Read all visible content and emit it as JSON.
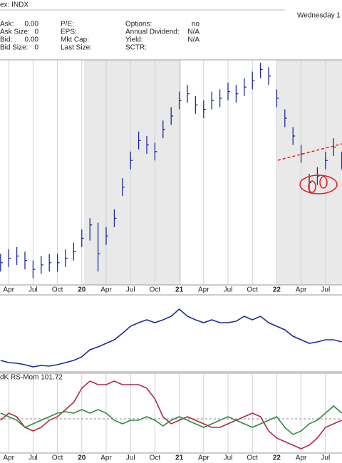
{
  "header": {
    "exchange": "ex: INDX",
    "date": "Wednesday 1",
    "fields": [
      [
        [
          "Ask:",
          "0.00"
        ],
        [
          "P/E:",
          ""
        ],
        [
          "Options:",
          "no"
        ]
      ],
      [
        [
          "Ask Size:",
          "0"
        ],
        [
          "EPS:",
          ""
        ],
        [
          "Annual Dividend:",
          "N/A"
        ]
      ],
      [
        [
          "Bid:",
          "0.00"
        ],
        [
          "Mkt Cap:",
          ""
        ],
        [
          "Yield:",
          "N/A"
        ]
      ],
      [
        [
          "Bid Size:",
          "0"
        ],
        [
          "Last Size:",
          ""
        ],
        [
          "SCTR:",
          ""
        ]
      ]
    ]
  },
  "chart_data": [
    {
      "type": "hlc",
      "color": "#1f2a9c",
      "ylim": [
        0,
        100
      ],
      "categories": [
        null,
        "Apr",
        null,
        null,
        "Jul",
        null,
        null,
        "Oct",
        null,
        null,
        "20",
        null,
        null,
        "Apr",
        null,
        null,
        "Jul",
        null,
        null,
        "Oct",
        null,
        null,
        "21",
        null,
        null,
        "Apr",
        null,
        null,
        "Jul",
        null,
        null,
        "Oct",
        null,
        null,
        "22",
        null,
        null,
        "Apr",
        null,
        null,
        "Jul",
        null,
        null
      ],
      "high": [
        14,
        16,
        17,
        15,
        11,
        13,
        14,
        14,
        16,
        19,
        25,
        30,
        28,
        26,
        34,
        48,
        60,
        69,
        67,
        64,
        74,
        80,
        87,
        90,
        85,
        83,
        87,
        88,
        91,
        90,
        93,
        96,
        100,
        98,
        88,
        79,
        71,
        63,
        50,
        53,
        60,
        66,
        60
      ],
      "low": [
        6,
        8,
        9,
        7,
        3,
        5,
        6,
        6,
        8,
        11,
        17,
        20,
        6,
        18,
        26,
        40,
        52,
        61,
        59,
        56,
        66,
        72,
        79,
        82,
        77,
        75,
        79,
        80,
        83,
        82,
        85,
        88,
        93,
        90,
        80,
        71,
        63,
        55,
        42,
        45,
        52,
        58,
        52
      ],
      "close": [
        10,
        12,
        13,
        11,
        7,
        9,
        10,
        10,
        12,
        15,
        21,
        27,
        14,
        22,
        30,
        44,
        56,
        65,
        63,
        60,
        70,
        76,
        83,
        86,
        81,
        79,
        83,
        84,
        87,
        86,
        89,
        92,
        97,
        94,
        84,
        75,
        67,
        59,
        46,
        49,
        56,
        62,
        56
      ]
    },
    {
      "type": "line",
      "ylim": [
        0,
        100
      ],
      "series": [
        {
          "color": "#1f2a9c",
          "values": [
            14,
            11,
            10,
            8,
            5,
            7,
            6,
            8,
            11,
            14,
            19,
            29,
            33,
            38,
            43,
            52,
            62,
            67,
            71,
            67,
            71,
            76,
            86,
            76,
            71,
            67,
            71,
            67,
            67,
            69,
            76,
            71,
            76,
            67,
            62,
            57,
            48,
            43,
            38,
            40,
            43,
            43,
            40
          ]
        }
      ]
    },
    {
      "type": "line",
      "label": "dK RS-Mom 101.72",
      "ylim": [
        95,
        106
      ],
      "hline": 100,
      "categories": [
        null,
        "Apr",
        null,
        null,
        "Jul",
        null,
        null,
        "Oct",
        null,
        null,
        "20",
        null,
        null,
        "Apr",
        null,
        null,
        "Jul",
        null,
        null,
        "Oct",
        null,
        null,
        "21",
        null,
        null,
        "Apr",
        null,
        null,
        "Jul",
        null,
        null,
        "Oct",
        null,
        null,
        "22",
        null,
        null,
        "Apr",
        null,
        null,
        "Jul",
        null,
        null
      ],
      "series": [
        {
          "color": "#b02848",
          "values": [
            99.8,
            100.8,
            100.3,
            98.8,
            98.3,
            98.8,
            99.8,
            100.3,
            101.3,
            102.3,
            104.3,
            105.3,
            104.8,
            104.8,
            105.3,
            104.8,
            104.8,
            104.8,
            104.3,
            102.8,
            100.3,
            99.3,
            99.8,
            100.3,
            99.8,
            99.3,
            98.8,
            98.8,
            99.3,
            99.8,
            100.3,
            100.8,
            100.3,
            98.3,
            97.3,
            96.8,
            96.3,
            95.8,
            96.3,
            97.3,
            98.8,
            99.3,
            99.8
          ]
        },
        {
          "color": "#2e8b3e",
          "values": [
            100.8,
            100.3,
            99.8,
            98.8,
            99.3,
            99.8,
            100.3,
            100.8,
            101,
            100.8,
            101.3,
            100.8,
            101.3,
            100.8,
            99.8,
            99.3,
            99.8,
            99.8,
            100.3,
            99.8,
            99,
            99.8,
            100.3,
            99.8,
            99.3,
            98.8,
            99.3,
            99.8,
            100.3,
            99.8,
            99.3,
            98.8,
            99.3,
            99.8,
            100.3,
            98.8,
            97.8,
            98.3,
            99.3,
            99.8,
            100.8,
            101.8,
            100.8
          ]
        }
      ]
    }
  ]
}
